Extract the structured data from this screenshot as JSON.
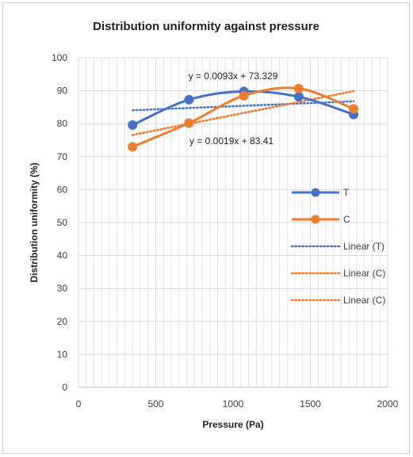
{
  "chart_data": {
    "type": "scatter",
    "title": "Distribution uniformity against pressure",
    "xlabel": "Pressure (Pa)",
    "ylabel": "Distribution uniformity (%)",
    "xlim": [
      0,
      2000
    ],
    "ylim": [
      0,
      100
    ],
    "x_ticks": [
      0,
      500,
      1000,
      1500,
      2000
    ],
    "y_ticks": [
      0,
      10,
      20,
      30,
      40,
      50,
      60,
      70,
      80,
      90,
      100
    ],
    "grid": true,
    "series": [
      {
        "name": "T",
        "color": "#4472C4",
        "style": "smooth-line-markers",
        "x": [
          350,
          715,
          1070,
          1425,
          1780
        ],
        "y": [
          79.6,
          87.3,
          89.8,
          88.2,
          82.8
        ]
      },
      {
        "name": "C",
        "color": "#ED7D31",
        "style": "smooth-line-markers",
        "x": [
          350,
          715,
          1070,
          1425,
          1780
        ],
        "y": [
          73.0,
          80.2,
          88.5,
          90.7,
          84.5
        ]
      }
    ],
    "trendlines": [
      {
        "name": "Linear (T)",
        "color": "#4472C4",
        "of": "T",
        "slope": 0.0019,
        "intercept": 83.41,
        "x_range": [
          350,
          1780
        ]
      },
      {
        "name": "Linear (C)",
        "color": "#ED7D31",
        "of": "C",
        "slope": 0.0093,
        "intercept": 73.329,
        "x_range": [
          350,
          1780
        ]
      },
      {
        "name": "Linear (C)",
        "color": "#ED7D31",
        "of": "C",
        "slope": 0.0093,
        "intercept": 73.329,
        "x_range": [
          350,
          1780
        ]
      }
    ],
    "annotations": [
      {
        "text": "y = 0.0093x + 73.329",
        "x": 1000,
        "y": 94.5
      },
      {
        "text": "y = 0.0019x + 83.41",
        "x": 990,
        "y": 74.8
      }
    ],
    "legend": {
      "placement": "right",
      "entries": [
        {
          "label": "T",
          "color": "#4472C4",
          "kind": "line-marker"
        },
        {
          "label": "C",
          "color": "#ED7D31",
          "kind": "line-marker"
        },
        {
          "label": "Linear (T)",
          "color": "#4472C4",
          "kind": "dotted"
        },
        {
          "label": "Linear (C)",
          "color": "#ED7D31",
          "kind": "dotted"
        },
        {
          "label": "Linear (C)",
          "color": "#ED7D31",
          "kind": "dotted"
        }
      ]
    }
  }
}
